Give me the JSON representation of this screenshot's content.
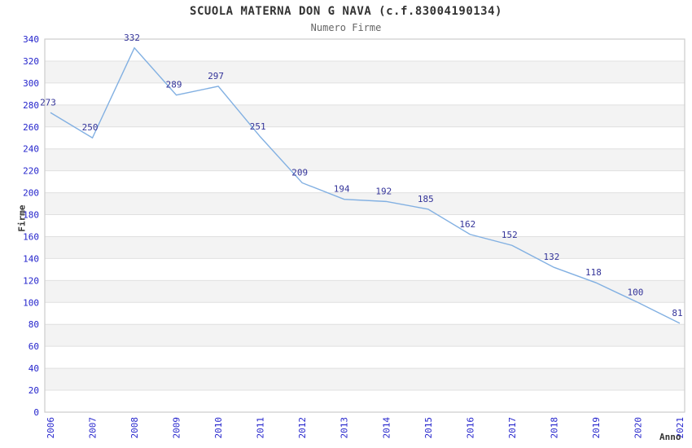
{
  "header": {
    "title": "SCUOLA MATERNA DON G NAVA (c.f.83004190134)",
    "subtitle": "Numero Firme"
  },
  "chart_data": {
    "type": "line",
    "title": "SCUOLA MATERNA DON G NAVA (c.f.83004190134)",
    "subtitle": "Numero Firme",
    "xlabel": "Anno",
    "ylabel": "Firme",
    "x": [
      "2006",
      "2007",
      "2008",
      "2009",
      "2010",
      "2011",
      "2012",
      "2013",
      "2014",
      "2015",
      "2016",
      "2017",
      "2018",
      "2019",
      "2020",
      "2021"
    ],
    "values": [
      273,
      250,
      332,
      289,
      297,
      251,
      209,
      194,
      192,
      185,
      162,
      152,
      132,
      118,
      100,
      81
    ],
    "ylim": [
      0,
      340
    ],
    "ytick_step": 20,
    "grid": true,
    "legend_position": "none",
    "x_tick_rotation": -90,
    "colors": {
      "line": "#82b0e2",
      "point_label": "#333399",
      "tick_label": "#2424cc",
      "axis_title": "#333333",
      "title": "#333333",
      "subtitle": "#666666",
      "band": "#f3f3f3",
      "gridline": "#e0e0e0",
      "border": "#cccccc",
      "background": "#ffffff"
    }
  }
}
